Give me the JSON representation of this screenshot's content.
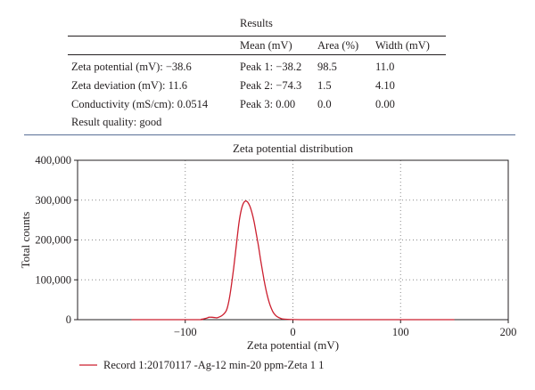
{
  "results": {
    "title": "Results",
    "columns": [
      "Mean (mV)",
      "Area (%)",
      "Width (mV)"
    ],
    "rows": [
      {
        "label": "Zeta potential (mV): −38.6",
        "cells": [
          "Peak 1: −38.2",
          "98.5",
          "11.0"
        ]
      },
      {
        "label": "Zeta deviation (mV): 11.6",
        "cells": [
          "Peak 2: −74.3",
          "1.5",
          "4.10"
        ]
      },
      {
        "label": "Conductivity (mS/cm): 0.0514",
        "cells": [
          "Peak 3: 0.00",
          "0.0",
          "0.00"
        ]
      },
      {
        "label": "Result quality: good",
        "cells": [
          "",
          "",
          ""
        ]
      }
    ]
  },
  "colors": {
    "curve": "#cc1f2f",
    "divider": "#5a6f96",
    "text": "#231f20"
  },
  "chart_data": {
    "type": "line",
    "title": "Zeta potential distribution",
    "xlabel": "Zeta potential (mV)",
    "ylabel": "Total counts",
    "xlim": [
      -200,
      200
    ],
    "ylim": [
      0,
      400000
    ],
    "x_ticks": [
      -100,
      0,
      100,
      200
    ],
    "x_tick_labels": [
      "−100",
      "0",
      "100",
      "200"
    ],
    "y_ticks": [
      0,
      100000,
      200000,
      300000,
      400000
    ],
    "y_tick_labels": [
      "0",
      "100,000",
      "200,000",
      "300,000",
      "400,000"
    ],
    "grid": true,
    "legend_position": "bottom-left",
    "series": [
      {
        "name": "Record 1:20170117 -Ag-12 min-20 ppm-Zeta 1 1",
        "x": [
          -150,
          -90,
          -85,
          -80,
          -78,
          -75,
          -72,
          -70,
          -66,
          -62,
          -60,
          -58,
          -55,
          -52,
          -50,
          -48,
          -46,
          -44,
          -43,
          -42,
          -40,
          -38,
          -36,
          -34,
          -32,
          -30,
          -28,
          -26,
          -24,
          -22,
          -20,
          -18,
          -15,
          -12,
          -10,
          -5,
          0,
          10,
          50,
          100,
          150
        ],
        "y": [
          0,
          0,
          1000,
          4000,
          6000,
          6000,
          5000,
          5000,
          10000,
          22000,
          40000,
          70000,
          130000,
          200000,
          245000,
          275000,
          292000,
          298000,
          297000,
          295000,
          285000,
          268000,
          245000,
          215000,
          185000,
          150000,
          118000,
          88000,
          63000,
          43000,
          28000,
          17000,
          8000,
          4000,
          2000,
          800,
          300,
          0,
          0,
          0,
          0
        ]
      }
    ]
  }
}
